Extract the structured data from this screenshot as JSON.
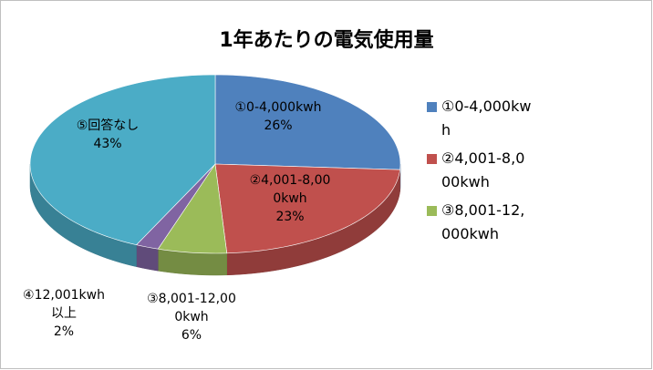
{
  "chart_data": {
    "type": "pie",
    "title": "1年あたりの電気使用量",
    "categories": [
      "①0-4,000kwh",
      "②4,001-8,000kwh",
      "③8,001-12,000kwh",
      "④12,001kwh以上",
      "⑤回答なし"
    ],
    "values": [
      26,
      23,
      6,
      2,
      43
    ],
    "value_labels": [
      "26%",
      "23%",
      "6%",
      "2%",
      "43%"
    ],
    "colors": [
      "#4f81bd",
      "#c0504d",
      "#9bbb59",
      "#8064a2",
      "#4bacc6"
    ],
    "legend_categories": [
      "①0-4,000kwh",
      "②4,001-8,000kwh",
      "③8,001-12,000kwh"
    ],
    "legend": "right"
  }
}
